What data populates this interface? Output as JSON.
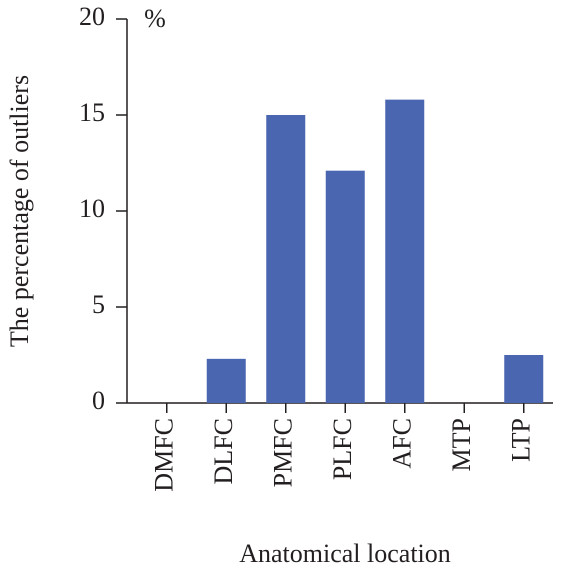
{
  "chart_data": {
    "type": "bar",
    "annotation": "%",
    "x_label": "Anatomical location",
    "y_label": "The percentage of outliers",
    "categories": [
      "DMFC",
      "DLFC",
      "PMFC",
      "PLFC",
      "AFC",
      "MTP",
      "LTP"
    ],
    "values": [
      0,
      2.3,
      15.0,
      12.1,
      15.8,
      0,
      2.5
    ],
    "color": "#4a66b0",
    "ylim": [
      0,
      20
    ],
    "yticks": [
      0,
      5,
      10,
      15,
      20
    ],
    "grid": false
  }
}
